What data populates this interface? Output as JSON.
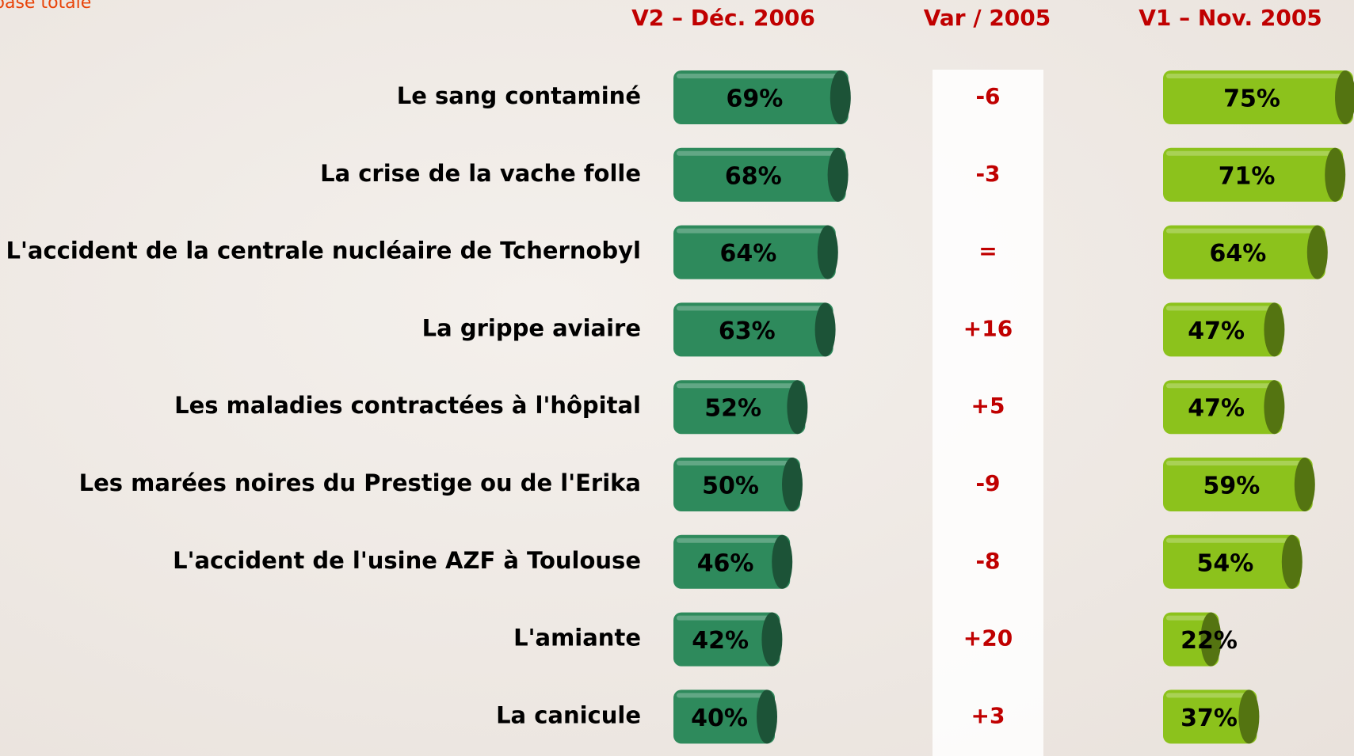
{
  "chart_data": {
    "type": "bar",
    "orientation": "horizontal",
    "subtitle": "base totale",
    "categories": [
      "Le sang contaminé",
      "La crise de la vache folle",
      "L'accident de la centrale nucléaire de Tchernobyl",
      "La grippe aviaire",
      "Les maladies contractées à l'hôpital",
      "Les marées noires du Prestige ou de l'Erika",
      "L'accident de l'usine AZF à Toulouse",
      "L'amiante",
      "La canicule"
    ],
    "series": [
      {
        "name": "V2 – Déc. 2006",
        "color": "#2e8a5c",
        "values": [
          69,
          68,
          64,
          63,
          52,
          50,
          46,
          42,
          40
        ],
        "value_labels": [
          "69%",
          "68%",
          "64%",
          "63%",
          "52%",
          "50%",
          "46%",
          "42%",
          "40%"
        ]
      },
      {
        "name": "V1 – Nov. 2005",
        "color": "#8cc21c",
        "values": [
          75,
          71,
          64,
          47,
          47,
          59,
          54,
          22,
          37
        ],
        "value_labels": [
          "75%",
          "71%",
          "64%",
          "47%",
          "47%",
          "59%",
          "54%",
          "22%",
          "37%"
        ]
      }
    ],
    "variation": {
      "name": "Var / 2005",
      "values": [
        -6,
        -3,
        0,
        16,
        5,
        -9,
        -8,
        20,
        3
      ],
      "value_labels": [
        "-6",
        "-3",
        "=",
        "+16",
        "+5",
        "-9",
        "-8",
        "+20",
        "+3"
      ]
    }
  }
}
